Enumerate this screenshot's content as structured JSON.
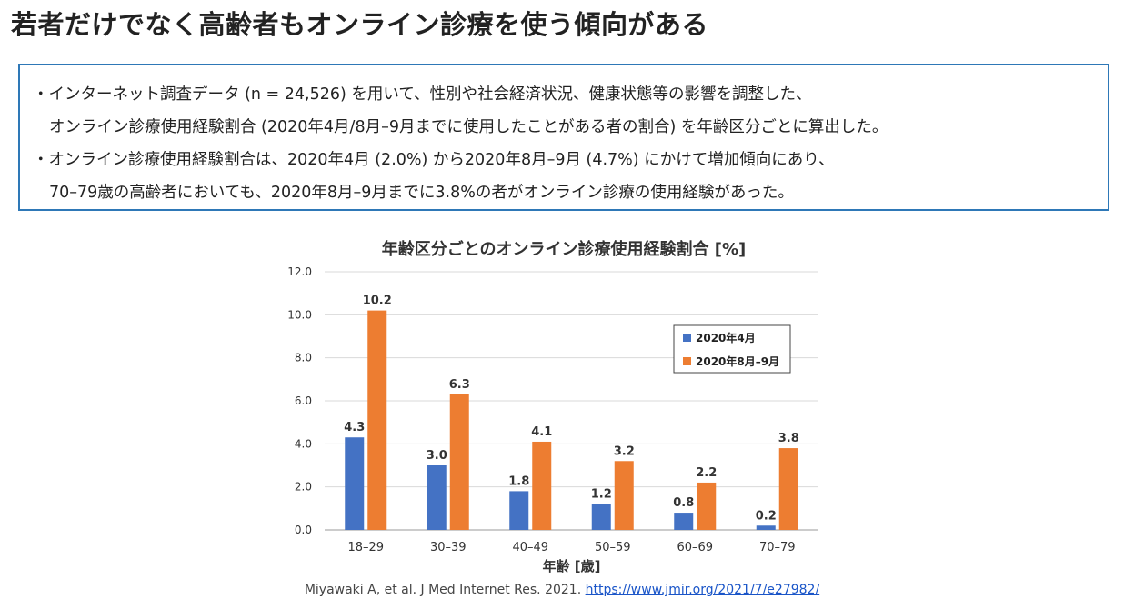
{
  "page": {
    "title": "若者だけでなく高齢者もオンライン診療を使う傾向がある",
    "bullets": [
      {
        "line1": "・インターネット調査データ (n = 24,526) を用いて、性別や社会経済状況、健康状態等の影響を調整した、",
        "line2": "オンライン診療使用経験割合 (2020年4月/8月–9月までに使用したことがある者の割合) を年齢区分ごとに算出した。"
      },
      {
        "line1": "・オンライン診療使用経験割合は、2020年4月 (2.0%) から2020年8月–9月 (4.7%) にかけて増加傾向にあり、",
        "line2": "70–79歳の高齢者においても、2020年8月–9月までに3.8%の者がオンライン診療の使用経験があった。"
      }
    ],
    "citation_text": "Miyawaki A, et al. J Med Internet Res. 2021. ",
    "citation_link": "https://www.jmir.org/2021/7/e27982/"
  },
  "chart_data": {
    "type": "bar",
    "title": "年齢区分ごとのオンライン診療使用経験割合 [%]",
    "xlabel": "年齢 [歳]",
    "ylabel": "",
    "categories": [
      "18–29",
      "30–39",
      "40–49",
      "50–59",
      "60–69",
      "70–79"
    ],
    "series": [
      {
        "name": "2020年4月",
        "values": [
          4.3,
          3.0,
          1.8,
          1.2,
          0.8,
          0.2
        ],
        "color": "#4472c4"
      },
      {
        "name": "2020年8月–9月",
        "values": [
          10.2,
          6.3,
          4.1,
          3.2,
          2.2,
          3.8
        ],
        "color": "#ed7d31"
      }
    ],
    "ylim": [
      0,
      12
    ],
    "yticks": [
      "0.0",
      "2.0",
      "4.0",
      "6.0",
      "8.0",
      "10.0",
      "12.0"
    ],
    "grid": true,
    "legend_position": "top-right"
  }
}
